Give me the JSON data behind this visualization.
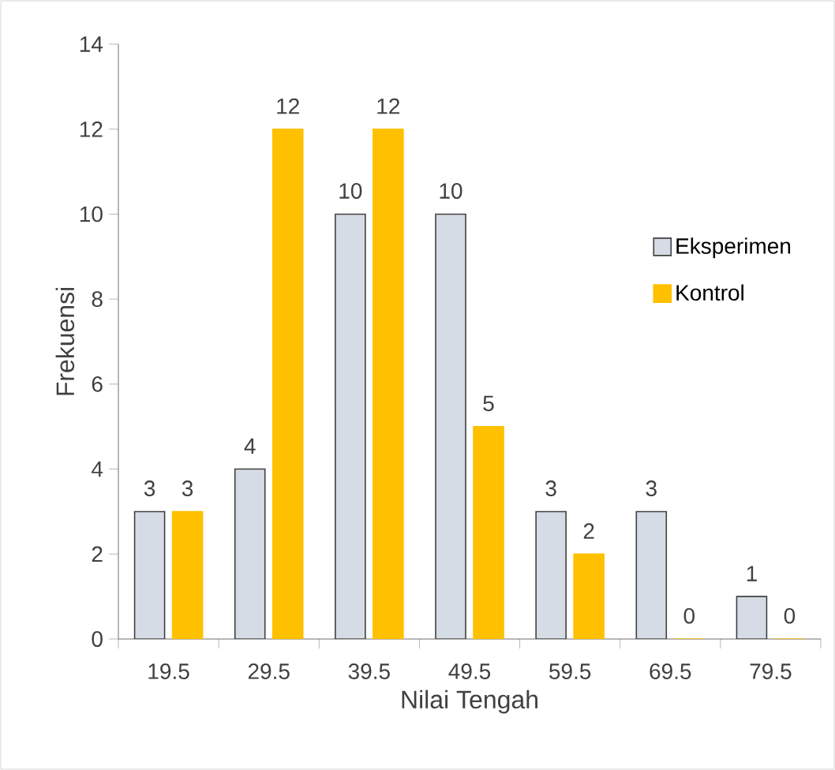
{
  "chart_data": {
    "type": "bar",
    "xlabel": "Nilai Tengah",
    "ylabel": "Frekuensi",
    "categories": [
      "19.5",
      "29.5",
      "39.5",
      "49.5",
      "59.5",
      "69.5",
      "79.5"
    ],
    "series": [
      {
        "name": "Eksperimen",
        "color": "#d6dce5",
        "values": [
          3,
          4,
          10,
          10,
          3,
          3,
          1
        ]
      },
      {
        "name": "Kontrol",
        "color": "#ffc000",
        "values": [
          3,
          12,
          12,
          5,
          2,
          0,
          0
        ]
      }
    ],
    "ylim": [
      0,
      14
    ],
    "yticks": [
      0,
      2,
      4,
      6,
      8,
      10,
      12,
      14
    ],
    "data_labels": true,
    "legend": "right"
  }
}
